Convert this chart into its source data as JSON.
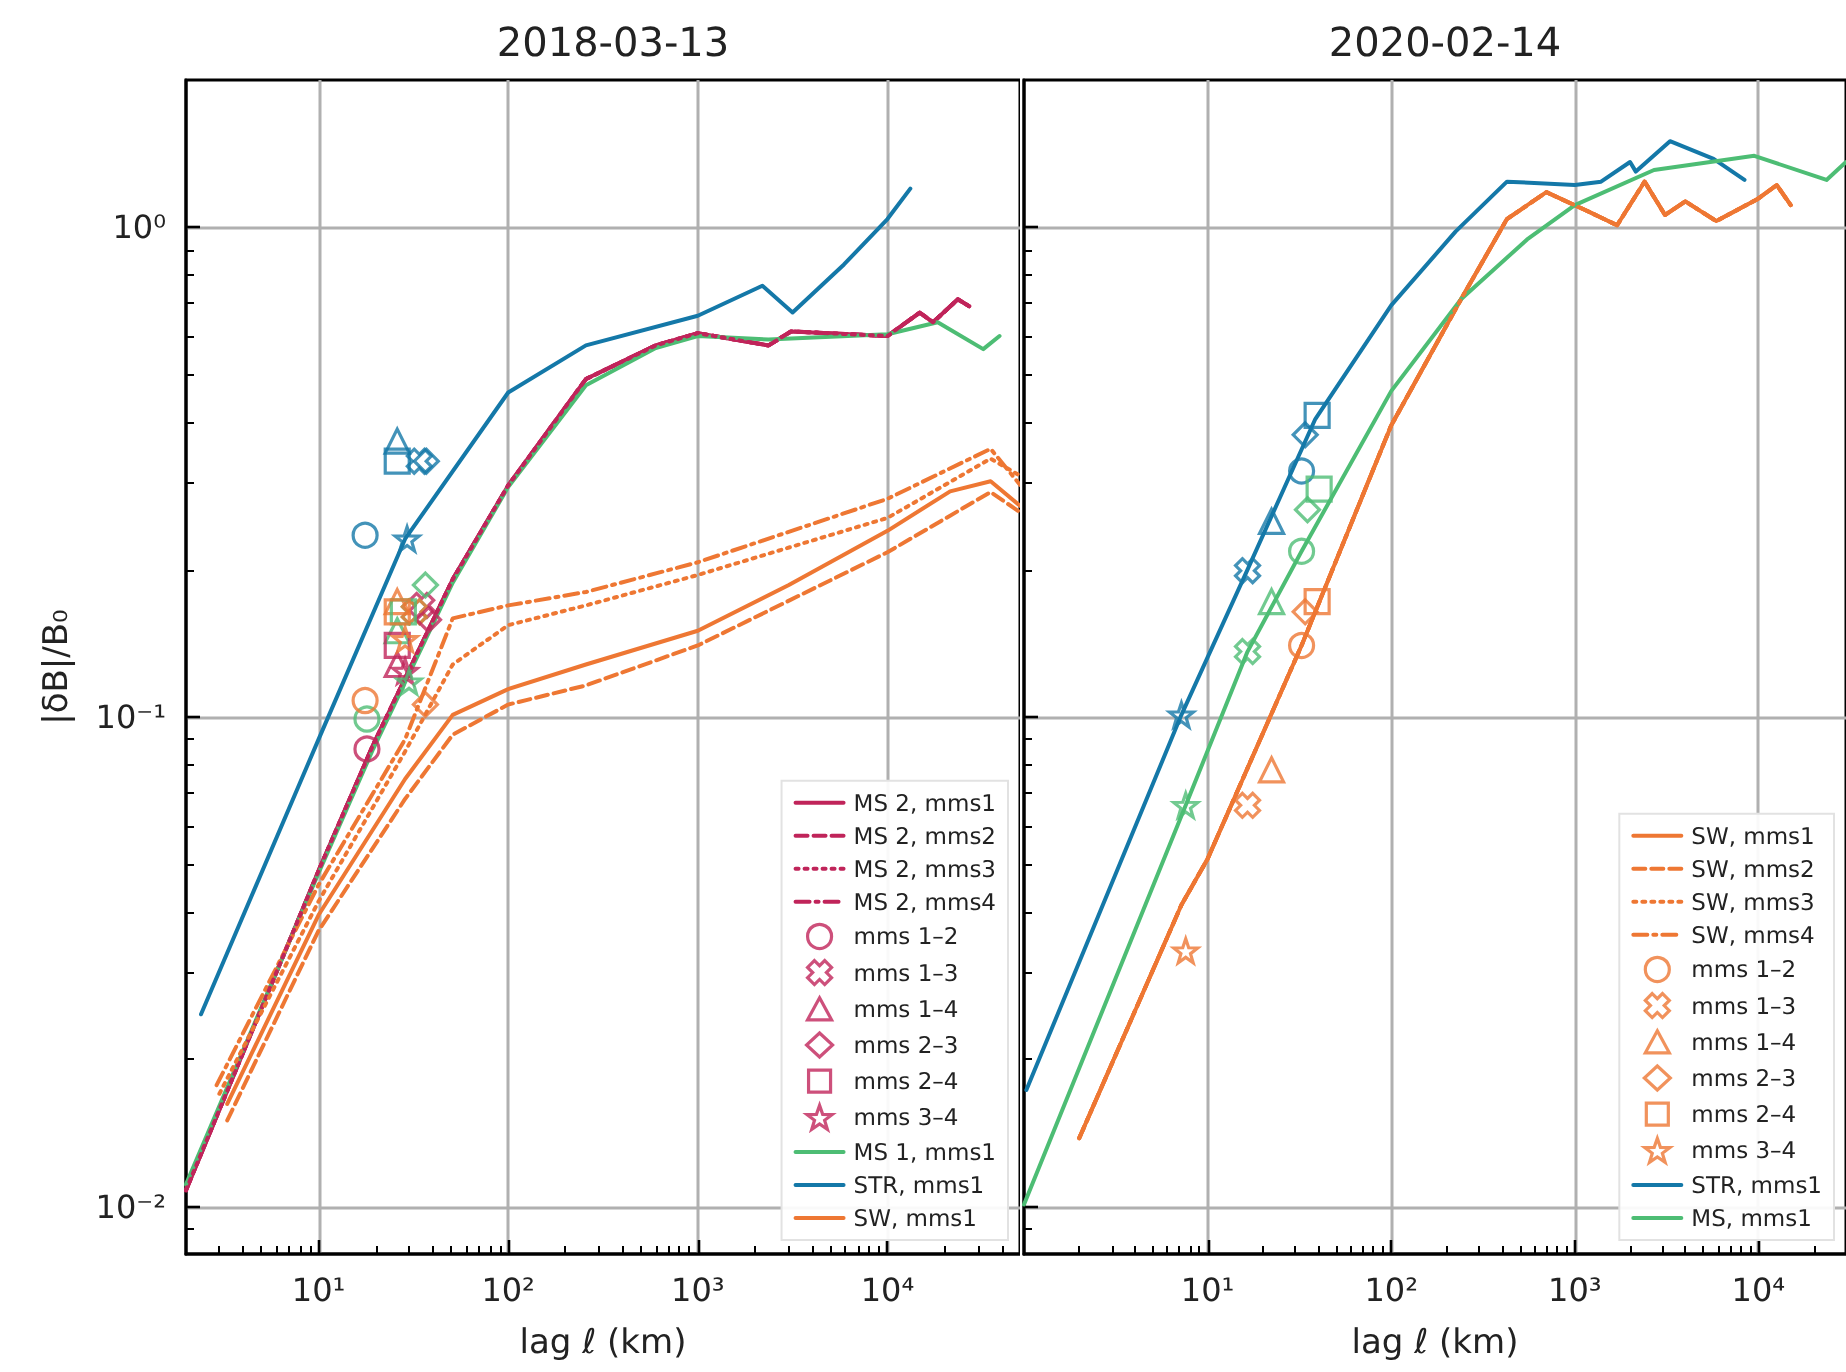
{
  "chart_data": [
    {
      "type": "line",
      "title": "2018-03-13",
      "xlabel": "lag ℓ (km)",
      "ylabel": "|δB|/B₀",
      "log": "xy",
      "grid": true,
      "legend": "bottom right",
      "xlim": [
        2,
        50000
      ],
      "ylim": [
        0.008,
        2
      ],
      "xticks": [
        {
          "value": 10,
          "label": "10¹"
        },
        {
          "value": 100,
          "label": "10²"
        },
        {
          "value": 1000,
          "label": "10³"
        },
        {
          "value": 10000,
          "label": "10⁴"
        }
      ],
      "yticks": [
        {
          "value": 0.01,
          "label": "10⁻²"
        },
        {
          "value": 0.1,
          "label": "10⁻¹"
        },
        {
          "value": 1,
          "label": "10⁰"
        }
      ],
      "series": [
        {
          "name": "MS 2, mms1",
          "type": "line",
          "line_style": "solid",
          "color": "#c0245a",
          "x": [
            2,
            10,
            19.4,
            51,
            100,
            257,
            600,
            1000,
            2360,
            3100,
            10000,
            14800,
            17400,
            23500,
            27000
          ],
          "values": [
            0.0108,
            0.0485,
            0.0877,
            0.191,
            0.297,
            0.49,
            0.574,
            0.608,
            0.574,
            0.613,
            0.6,
            0.67,
            0.64,
            0.713,
            0.69
          ]
        },
        {
          "name": "MS 2, mms2",
          "type": "line",
          "line_style": "dashed",
          "color": "#c0245a",
          "x": [
            2,
            10,
            19.4,
            51,
            100,
            257,
            600,
            1000,
            2360,
            3100,
            10000,
            14800,
            17400,
            23500,
            27000
          ],
          "values": [
            0.0108,
            0.0485,
            0.0877,
            0.191,
            0.297,
            0.49,
            0.574,
            0.608,
            0.574,
            0.613,
            0.6,
            0.67,
            0.64,
            0.713,
            0.69
          ]
        },
        {
          "name": "MS 2, mms3",
          "type": "line",
          "line_style": "dotted",
          "color": "#c0245a",
          "x": [
            2,
            10,
            19.4,
            51,
            100,
            257,
            600,
            1000,
            2360,
            3100,
            10000,
            14800,
            17400,
            23500,
            27000
          ],
          "values": [
            0.0108,
            0.0485,
            0.0877,
            0.191,
            0.297,
            0.49,
            0.574,
            0.608,
            0.574,
            0.613,
            0.6,
            0.67,
            0.64,
            0.713,
            0.69
          ]
        },
        {
          "name": "MS 2, mms4",
          "type": "line",
          "line_style": "dashdot",
          "color": "#c0245a",
          "x": [
            2,
            10,
            19.4,
            51,
            100,
            257,
            600,
            1000,
            2360,
            3100,
            10000,
            14800,
            17400,
            23500,
            27000
          ],
          "values": [
            0.0108,
            0.0485,
            0.0877,
            0.191,
            0.297,
            0.49,
            0.574,
            0.608,
            0.574,
            0.613,
            0.6,
            0.67,
            0.64,
            0.713,
            0.69
          ]
        },
        {
          "name": "mms 1–2",
          "type": "scatter",
          "marker": "circle",
          "color": "#c0245a",
          "colors": [
            "#c0245a",
            "#4dbd74",
            "#1478a8",
            "#ee7733"
          ],
          "x": [
            18,
            18,
            17.6,
            17.6
          ],
          "values": [
            0.086,
            0.099,
            0.235,
            0.108
          ]
        },
        {
          "name": "mms 1–3",
          "type": "scatter",
          "marker": "cross",
          "color": "#c0245a",
          "colors": [
            "#c0245a",
            "#4dbd74",
            "#1478a8",
            "#ee7733"
          ],
          "x": [
            35,
            32,
            34,
            32
          ],
          "values": [
            0.169,
            0.164,
            0.333,
            0.164
          ]
        },
        {
          "name": "mms 1–4",
          "type": "scatter",
          "marker": "triangle",
          "color": "#c0245a",
          "colors": [
            "#c0245a",
            "#4dbd74",
            "#1478a8",
            "#ee7733"
          ],
          "x": [
            26,
            26,
            26,
            26
          ],
          "values": [
            0.128,
            0.15,
            0.366,
            0.172
          ]
        },
        {
          "name": "mms 2–3",
          "type": "scatter",
          "marker": "diamond",
          "color": "#c0245a",
          "colors": [
            "#c0245a",
            "#4dbd74",
            "#1478a8",
            "#ee7733"
          ],
          "x": [
            38,
            36.6,
            37,
            36.6
          ],
          "values": [
            0.158,
            0.186,
            0.333,
            0.106
          ]
        },
        {
          "name": "mms 2–4",
          "type": "scatter",
          "marker": "square",
          "color": "#c0245a",
          "colors": [
            "#c0245a",
            "#4dbd74",
            "#1478a8",
            "#ee7733"
          ],
          "x": [
            26,
            28,
            26,
            26
          ],
          "values": [
            0.14,
            0.164,
            0.333,
            0.164
          ]
        },
        {
          "name": "mms 3–4",
          "type": "scatter",
          "marker": "star",
          "color": "#c0245a",
          "colors": [
            "#c0245a",
            "#4dbd74",
            "#1478a8",
            "#ee7733"
          ],
          "x": [
            28.6,
            30,
            29.3,
            28.6
          ],
          "values": [
            0.124,
            0.118,
            0.231,
            0.144
          ]
        },
        {
          "name": "MS 1, mms1",
          "type": "line",
          "line_style": "solid",
          "color": "#4dbd74",
          "x": [
            2,
            10,
            19.4,
            51,
            100,
            257,
            600,
            1000,
            2360,
            10000,
            18400,
            32000,
            39000
          ],
          "values": [
            0.0111,
            0.048,
            0.086,
            0.188,
            0.295,
            0.476,
            0.567,
            0.6,
            0.59,
            0.605,
            0.64,
            0.564,
            0.6
          ]
        },
        {
          "name": "STR, mms1",
          "type": "line",
          "line_style": "solid",
          "color": "#1478a8",
          "x": [
            2.4,
            10,
            28.6,
            100,
            257,
            1000,
            2190,
            3160,
            5900,
            10000,
            13200
          ],
          "values": [
            0.0247,
            0.09,
            0.231,
            0.46,
            0.574,
            0.66,
            0.76,
            0.67,
            0.84,
            1.04,
            1.2
          ]
        },
        {
          "name": "SW, mms1",
          "type": "line",
          "line_style": "solid",
          "color": "#ee7733",
          "x": [
            3.3,
            10,
            28.6,
            51,
            100,
            257,
            1000,
            3020,
            10000,
            21400,
            35000,
            50000
          ],
          "values": [
            0.0162,
            0.0394,
            0.0747,
            0.101,
            0.114,
            0.128,
            0.15,
            0.186,
            0.24,
            0.289,
            0.303,
            0.27
          ]
        },
        {
          "type": "line",
          "line_style": "dashed",
          "color": "#ee7733",
          "x": [
            3.3,
            10,
            28.6,
            51,
            100,
            257,
            1000,
            10000,
            35000,
            50000
          ],
          "values": [
            0.015,
            0.0366,
            0.068,
            0.092,
            0.106,
            0.116,
            0.14,
            0.217,
            0.288,
            0.262
          ]
        },
        {
          "type": "line",
          "line_style": "dotted",
          "color": "#ee7733",
          "x": [
            3,
            10,
            28.6,
            51,
            100,
            257,
            1000,
            10000,
            35000,
            50000
          ],
          "values": [
            0.017,
            0.042,
            0.085,
            0.128,
            0.154,
            0.169,
            0.195,
            0.255,
            0.337,
            0.311
          ]
        },
        {
          "type": "line",
          "line_style": "dashdot",
          "color": "#ee7733",
          "x": [
            2.9,
            10,
            28.6,
            51,
            100,
            257,
            1000,
            10000,
            35000,
            50000
          ],
          "values": [
            0.0177,
            0.0454,
            0.09,
            0.159,
            0.169,
            0.18,
            0.207,
            0.279,
            0.353,
            0.298
          ]
        }
      ]
    },
    {
      "type": "line",
      "title": "2020-02-14",
      "xlabel": "lag ℓ (km)",
      "log": "xy",
      "grid": true,
      "legend": "bottom right",
      "tick_labels": "x",
      "xlim": [
        1,
        30000
      ],
      "ylim": [
        0.008,
        2
      ],
      "xticks": [
        {
          "value": 10,
          "label": "10¹"
        },
        {
          "value": 100,
          "label": "10²"
        },
        {
          "value": 1000,
          "label": "10³"
        },
        {
          "value": 10000,
          "label": "10⁴"
        }
      ],
      "yticks": [
        {
          "value": 0.01,
          "label": null
        },
        {
          "value": 0.1,
          "label": null
        },
        {
          "value": 1,
          "label": null
        }
      ],
      "series": [
        {
          "name": "SW, mms1",
          "type": "line",
          "line_style": "solid",
          "color": "#ee7733",
          "x": [
            2,
            7.2,
            10,
            32.5,
            100,
            240,
            427,
            700,
            1170,
            1700,
            2400,
            3100,
            4000,
            5900,
            9800,
            12600,
            15000
          ],
          "values": [
            0.0138,
            0.0413,
            0.0513,
            0.14,
            0.394,
            0.713,
            1.04,
            1.18,
            1.08,
            1.01,
            1.24,
            1.06,
            1.13,
            1.03,
            1.14,
            1.22,
            1.11
          ]
        },
        {
          "name": "SW, mms2",
          "type": "line",
          "line_style": "dashed",
          "color": "#ee7733",
          "x": [
            2,
            7.2,
            10,
            32.5,
            100,
            240,
            427,
            700,
            1170,
            1700,
            2400,
            3100,
            4000,
            5900,
            9800,
            12600,
            15000
          ],
          "values": [
            0.0138,
            0.0413,
            0.0513,
            0.14,
            0.394,
            0.713,
            1.04,
            1.18,
            1.08,
            1.01,
            1.24,
            1.06,
            1.13,
            1.03,
            1.14,
            1.22,
            1.11
          ]
        },
        {
          "name": "SW, mms3",
          "type": "line",
          "line_style": "dotted",
          "color": "#ee7733",
          "x": [
            2,
            7.2,
            10,
            32.5,
            100,
            240,
            427,
            700,
            1170,
            1700,
            2400,
            3100,
            4000,
            5900,
            9800,
            12600,
            15000
          ],
          "values": [
            0.0138,
            0.0413,
            0.0513,
            0.14,
            0.394,
            0.713,
            1.04,
            1.18,
            1.08,
            1.01,
            1.24,
            1.06,
            1.13,
            1.03,
            1.14,
            1.22,
            1.11
          ]
        },
        {
          "name": "SW, mms4",
          "type": "line",
          "line_style": "dashdot",
          "color": "#ee7733",
          "x": [
            2,
            7.2,
            10,
            32.5,
            100,
            240,
            427,
            700,
            1170,
            1700,
            2400,
            3100,
            4000,
            5900,
            9800,
            12600,
            15000
          ],
          "values": [
            0.0138,
            0.0413,
            0.0513,
            0.14,
            0.394,
            0.713,
            1.04,
            1.18,
            1.08,
            1.01,
            1.24,
            1.06,
            1.13,
            1.03,
            1.14,
            1.22,
            1.11
          ]
        },
        {
          "name": "mms 1–2",
          "type": "scatter",
          "marker": "circle",
          "color": "#ee7733",
          "colors": [
            "#ee7733",
            "#1478a8",
            "#4dbd74"
          ],
          "x": [
            32.5,
            32.5,
            32.5
          ],
          "values": [
            0.14,
            0.318,
            0.218
          ]
        },
        {
          "name": "mms 1–3",
          "type": "scatter",
          "marker": "cross",
          "color": "#ee7733",
          "colors": [
            "#ee7733",
            "#1478a8",
            "#4dbd74"
          ],
          "x": [
            16.5,
            16.5,
            16.5
          ],
          "values": [
            0.066,
            0.199,
            0.136
          ]
        },
        {
          "name": "mms 1–4",
          "type": "scatter",
          "marker": "triangle",
          "color": "#ee7733",
          "colors": [
            "#ee7733",
            "#1478a8",
            "#4dbd74"
          ],
          "x": [
            22.3,
            22.3,
            22.3
          ],
          "values": [
            0.078,
            0.251,
            0.172
          ]
        },
        {
          "name": "mms 2–3",
          "type": "scatter",
          "marker": "diamond",
          "color": "#ee7733",
          "colors": [
            "#ee7733",
            "#1478a8",
            "#4dbd74"
          ],
          "x": [
            34,
            34,
            35
          ],
          "values": [
            0.164,
            0.377,
            0.265
          ]
        },
        {
          "name": "mms 2–4",
          "type": "scatter",
          "marker": "square",
          "color": "#ee7733",
          "colors": [
            "#ee7733",
            "#1478a8",
            "#4dbd74"
          ],
          "x": [
            39.5,
            39.5,
            40.5
          ],
          "values": [
            0.172,
            0.413,
            0.292
          ]
        },
        {
          "name": "mms 3–4",
          "type": "scatter",
          "marker": "star",
          "color": "#ee7733",
          "colors": [
            "#ee7733",
            "#1478a8",
            "#4dbd74"
          ],
          "x": [
            7.6,
            7.2,
            7.6
          ],
          "values": [
            0.0333,
            0.101,
            0.066
          ]
        },
        {
          "name": "STR, mms1",
          "type": "line",
          "line_style": "solid",
          "color": "#1478a8",
          "x": [
            1.03,
            7.2,
            16.5,
            38.6,
            100,
            224,
            427,
            1000,
            1390,
            2000,
            2150,
            3300,
            5700,
            8400
          ],
          "values": [
            0.0173,
            0.101,
            0.2,
            0.406,
            0.693,
            0.98,
            1.24,
            1.22,
            1.24,
            1.36,
            1.3,
            1.5,
            1.38,
            1.25
          ]
        },
        {
          "name": "MS, mms1",
          "type": "line",
          "line_style": "solid",
          "color": "#4dbd74",
          "x": [
            1,
            7.6,
            16.5,
            32.5,
            100,
            240,
            550,
            1000,
            2700,
            9500,
            23500,
            30000
          ],
          "values": [
            0.0101,
            0.066,
            0.136,
            0.218,
            0.463,
            0.713,
            0.945,
            1.11,
            1.31,
            1.4,
            1.25,
            1.36
          ]
        }
      ]
    }
  ]
}
